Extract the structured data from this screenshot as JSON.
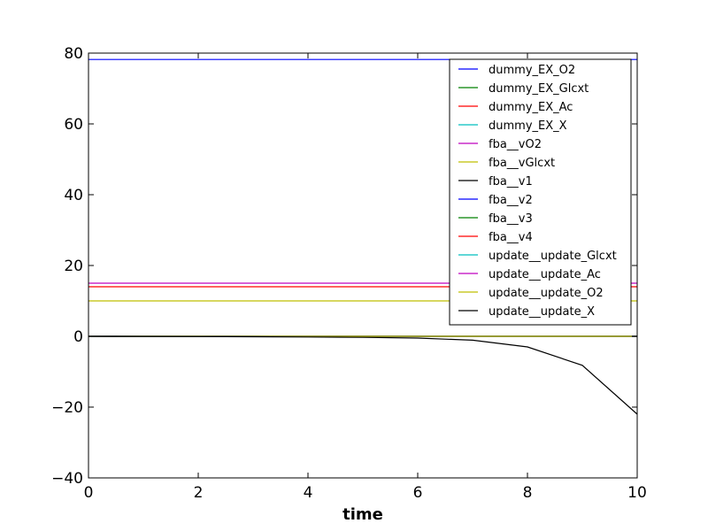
{
  "chart_data": {
    "type": "line",
    "title": "",
    "xlabel": "time",
    "ylabel": "",
    "xlim": [
      0,
      10
    ],
    "ylim": [
      -40,
      80
    ],
    "x_ticks": [
      0,
      2,
      4,
      6,
      8,
      10
    ],
    "y_ticks": [
      -40,
      -20,
      0,
      20,
      40,
      60,
      80
    ],
    "x_tick_labels": [
      "0",
      "2",
      "4",
      "6",
      "8",
      "10"
    ],
    "y_tick_labels": [
      "−40",
      "−20",
      "0",
      "20",
      "40",
      "60",
      "80"
    ],
    "grid": false,
    "legend_position": "top-right",
    "x": [
      0,
      1,
      2,
      3,
      4,
      5,
      6,
      7,
      8,
      9,
      10
    ],
    "series": [
      {
        "name": "dummy_EX_O2",
        "color": "#0000ff",
        "values": [
          78.2,
          78.2,
          78.2,
          78.2,
          78.2,
          78.2,
          78.2,
          78.2,
          78.2,
          78.2,
          78.2
        ]
      },
      {
        "name": "dummy_EX_Glcxt",
        "color": "#008000",
        "values": [
          0,
          0,
          0,
          0,
          0,
          0,
          0,
          0,
          0,
          0,
          0
        ]
      },
      {
        "name": "dummy_EX_Ac",
        "color": "#ff0000",
        "values": [
          0,
          0,
          0,
          0,
          0,
          0,
          0,
          0,
          0,
          0,
          0
        ]
      },
      {
        "name": "dummy_EX_X",
        "color": "#00bfbf",
        "values": [
          0,
          0,
          0,
          0,
          0,
          0,
          0,
          0,
          0,
          0,
          0
        ]
      },
      {
        "name": "fba__vO2",
        "color": "#bf00bf",
        "values": [
          15,
          15,
          15,
          15,
          15,
          15,
          15,
          15,
          15,
          15,
          15
        ]
      },
      {
        "name": "fba__vGlcxt",
        "color": "#bfbf00",
        "values": [
          10,
          10,
          10,
          10,
          10,
          10,
          10,
          10,
          10,
          10,
          10
        ]
      },
      {
        "name": "fba__v1",
        "color": "#000000",
        "values": [
          0,
          0,
          0,
          0,
          0,
          0,
          0,
          0,
          0,
          0,
          0
        ]
      },
      {
        "name": "fba__v2",
        "color": "#0000ff",
        "values": [
          0,
          0,
          0,
          0,
          0,
          0,
          0,
          0,
          0,
          0,
          0
        ]
      },
      {
        "name": "fba__v3",
        "color": "#008000",
        "values": [
          0,
          0,
          0,
          0,
          0,
          0,
          0,
          0,
          0,
          0,
          0
        ]
      },
      {
        "name": "fba__v4",
        "color": "#ff0000",
        "values": [
          14,
          14,
          14,
          14,
          14,
          14,
          14,
          14,
          14,
          14,
          14
        ]
      },
      {
        "name": "update__update_Glcxt",
        "color": "#00bfbf",
        "values": [
          0,
          0,
          0,
          0,
          0,
          0,
          0,
          0,
          0,
          0,
          0
        ]
      },
      {
        "name": "update__update_Ac",
        "color": "#bf00bf",
        "values": [
          0,
          0,
          0,
          0,
          0,
          0,
          0,
          0,
          0,
          0,
          0
        ]
      },
      {
        "name": "update__update_O2",
        "color": "#bfbf00",
        "values": [
          0,
          0,
          0,
          0,
          0,
          0,
          0,
          0,
          0,
          0,
          0
        ]
      },
      {
        "name": "update__update_X",
        "color": "#000000",
        "values": [
          -0.02,
          -0.05,
          -0.08,
          -0.12,
          -0.2,
          -0.3,
          -0.5,
          -1.1,
          -3.0,
          -8.2,
          -22.0
        ]
      }
    ]
  }
}
